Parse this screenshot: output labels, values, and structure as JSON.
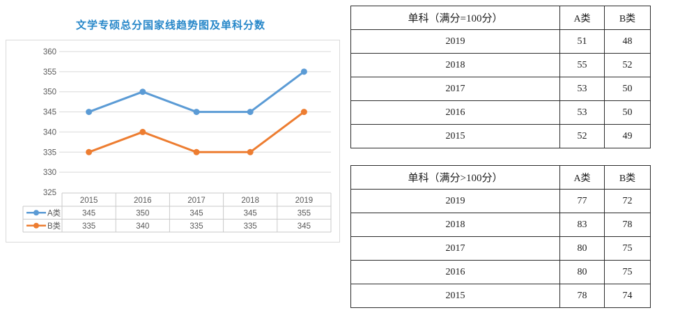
{
  "page": {
    "title": "文学专硕总分国家线趋势图及单科分数"
  },
  "chart_data": {
    "type": "line",
    "title": "文学专硕总分国家线趋势图及单科分数",
    "categories": [
      "2015",
      "2016",
      "2017",
      "2018",
      "2019"
    ],
    "series": [
      {
        "name": "A类",
        "color": "#5B9BD5",
        "values": [
          345,
          350,
          345,
          345,
          355
        ]
      },
      {
        "name": "B类",
        "color": "#ED7D31",
        "values": [
          335,
          340,
          335,
          335,
          345
        ]
      }
    ],
    "ylim": [
      325,
      360
    ],
    "ytick_step": 5,
    "grid": true,
    "legend_position": "data-table-left",
    "colors": {
      "gridline": "#D9D9D9",
      "table_line": "#C9C9C9",
      "axis_text": "#595959",
      "title_text": "#2787C9"
    }
  },
  "tables": [
    {
      "header": {
        "label": "单科（满分=100分）",
        "col_a": "A类",
        "col_b": "B类"
      },
      "rows": [
        {
          "year": "2019",
          "a": "51",
          "b": "48"
        },
        {
          "year": "2018",
          "a": "55",
          "b": "52"
        },
        {
          "year": "2017",
          "a": "53",
          "b": "50"
        },
        {
          "year": "2016",
          "a": "53",
          "b": "50"
        },
        {
          "year": "2015",
          "a": "52",
          "b": "49"
        }
      ]
    },
    {
      "header": {
        "label": "单科（满分>100分）",
        "col_a": "A类",
        "col_b": "B类"
      },
      "rows": [
        {
          "year": "2019",
          "a": "77",
          "b": "72"
        },
        {
          "year": "2018",
          "a": "83",
          "b": "78"
        },
        {
          "year": "2017",
          "a": "80",
          "b": "75"
        },
        {
          "year": "2016",
          "a": "80",
          "b": "75"
        },
        {
          "year": "2015",
          "a": "78",
          "b": "74"
        }
      ]
    }
  ]
}
